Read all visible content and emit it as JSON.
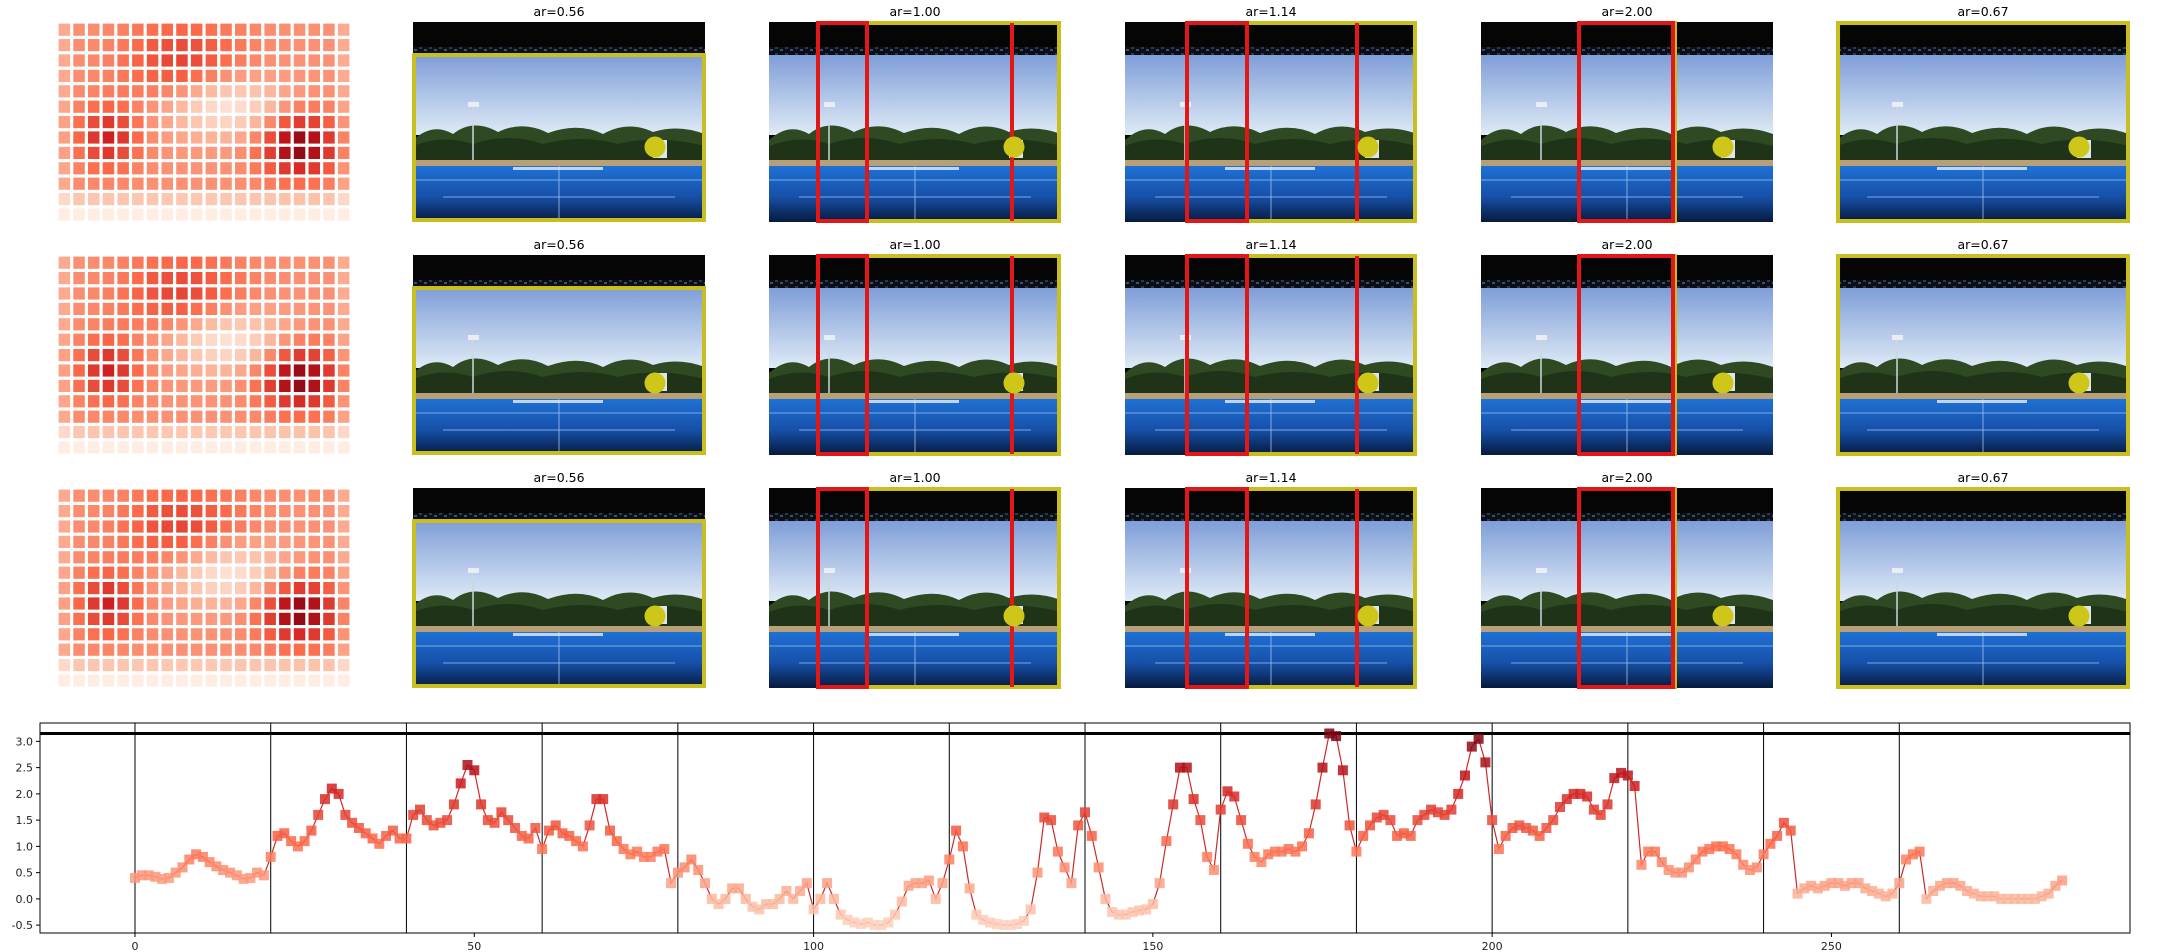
{
  "figure": {
    "rows": [
      {
        "heatmap_name": "saliency-heatmap-row1",
        "panels": [
          {
            "title": "ar=0.56",
            "red_lines": false,
            "dot": true
          },
          {
            "title": "ar=1.00",
            "red_lines": true,
            "dot": true
          },
          {
            "title": "ar=1.14",
            "red_lines": true,
            "dot": true
          },
          {
            "title": "ar=2.00",
            "red_lines": true,
            "dot": true
          },
          {
            "title": "ar=0.67",
            "red_lines": false,
            "dot": true
          }
        ]
      },
      {
        "heatmap_name": "saliency-heatmap-row2",
        "panels": [
          {
            "title": "ar=0.56",
            "red_lines": false,
            "dot": true
          },
          {
            "title": "ar=1.00",
            "red_lines": true,
            "dot": true
          },
          {
            "title": "ar=1.14",
            "red_lines": true,
            "dot": true
          },
          {
            "title": "ar=2.00",
            "red_lines": true,
            "dot": true
          },
          {
            "title": "ar=0.67",
            "red_lines": false,
            "dot": true
          }
        ]
      },
      {
        "heatmap_name": "saliency-heatmap-row3",
        "panels": [
          {
            "title": "ar=0.56",
            "red_lines": false,
            "dot": true
          },
          {
            "title": "ar=1.00",
            "red_lines": true,
            "dot": true
          },
          {
            "title": "ar=1.14",
            "red_lines": true,
            "dot": true
          },
          {
            "title": "ar=2.00",
            "red_lines": true,
            "dot": true
          },
          {
            "title": "ar=0.67",
            "red_lines": false,
            "dot": true
          }
        ]
      }
    ],
    "colors": {
      "crop_box": "#c8bf1e",
      "red_line": "#e01818",
      "dot": "#cfc61a",
      "line": "#cc2a2a"
    }
  },
  "chart_data": {
    "type": "line",
    "title": "",
    "xlabel": "",
    "ylabel": "",
    "xlim": [
      -14,
      294
    ],
    "ylim": [
      -0.65,
      3.35
    ],
    "xticks": [
      0,
      50,
      100,
      150,
      200,
      250
    ],
    "yticks": [
      -0.5,
      0.0,
      0.5,
      1.0,
      1.5,
      2.0,
      2.5,
      3.0
    ],
    "vlines": [
      0,
      20,
      40,
      60,
      80,
      100,
      120,
      140,
      160,
      180,
      200,
      220,
      240,
      260
    ],
    "hline": 3.15,
    "series": [
      {
        "values": [
          0.4,
          0.45,
          0.45,
          0.42,
          0.38,
          0.4,
          0.5,
          0.6,
          0.75,
          0.85,
          0.8,
          0.7,
          0.62,
          0.55,
          0.5,
          0.45,
          0.38,
          0.4,
          0.5,
          0.45,
          0.8,
          1.2,
          1.25,
          1.1,
          1.0,
          1.1,
          1.3,
          1.6,
          1.9,
          2.1,
          2.0,
          1.6,
          1.45,
          1.35,
          1.25,
          1.15,
          1.05,
          1.2,
          1.3,
          1.15,
          1.15,
          1.6,
          1.7,
          1.5,
          1.4,
          1.45,
          1.5,
          1.8,
          2.2,
          2.55,
          2.45,
          1.8,
          1.5,
          1.45,
          1.65,
          1.5,
          1.35,
          1.2,
          1.15,
          1.35,
          0.95,
          1.3,
          1.4,
          1.25,
          1.2,
          1.1,
          1.0,
          1.4,
          1.9,
          1.9,
          1.3,
          1.1,
          0.95,
          0.85,
          0.9,
          0.8,
          0.8,
          0.9,
          0.95,
          0.3,
          0.5,
          0.6,
          0.75,
          0.55,
          0.3,
          0.0,
          -0.1,
          0.0,
          0.2,
          0.2,
          0.0,
          -0.15,
          -0.2,
          -0.1,
          -0.1,
          0.0,
          0.15,
          0.0,
          0.15,
          0.3,
          -0.2,
          0.0,
          0.3,
          0.0,
          -0.3,
          -0.4,
          -0.45,
          -0.48,
          -0.45,
          -0.5,
          -0.5,
          -0.45,
          -0.3,
          -0.05,
          0.25,
          0.3,
          0.3,
          0.35,
          0.0,
          0.3,
          0.75,
          1.3,
          1.0,
          0.2,
          -0.3,
          -0.4,
          -0.45,
          -0.48,
          -0.5,
          -0.5,
          -0.48,
          -0.42,
          -0.2,
          0.5,
          1.55,
          1.5,
          0.9,
          0.6,
          0.3,
          1.4,
          1.65,
          1.2,
          0.6,
          0.0,
          -0.25,
          -0.3,
          -0.3,
          -0.25,
          -0.22,
          -0.2,
          -0.1,
          0.3,
          1.1,
          1.8,
          2.5,
          2.5,
          1.9,
          1.5,
          0.8,
          0.55,
          1.7,
          2.05,
          1.95,
          1.5,
          1.05,
          0.8,
          0.7,
          0.85,
          0.9,
          0.9,
          0.95,
          0.9,
          1.0,
          1.25,
          1.8,
          2.5,
          3.15,
          3.1,
          2.45,
          1.4,
          0.9,
          1.2,
          1.4,
          1.55,
          1.6,
          1.5,
          1.2,
          1.25,
          1.2,
          1.5,
          1.6,
          1.7,
          1.65,
          1.6,
          1.7,
          2.0,
          2.35,
          2.9,
          3.05,
          2.6,
          1.5,
          0.95,
          1.2,
          1.35,
          1.4,
          1.35,
          1.3,
          1.2,
          1.35,
          1.5,
          1.75,
          1.9,
          2.0,
          2.0,
          1.95,
          1.7,
          1.6,
          1.8,
          2.3,
          2.4,
          2.35,
          2.15,
          0.65,
          0.9,
          0.9,
          0.7,
          0.55,
          0.5,
          0.5,
          0.6,
          0.75,
          0.9,
          0.95,
          1.0,
          1.0,
          0.95,
          0.85,
          0.65,
          0.55,
          0.6,
          0.85,
          1.05,
          1.2,
          1.45,
          1.3,
          0.1,
          0.2,
          0.25,
          0.2,
          0.25,
          0.3,
          0.3,
          0.25,
          0.3,
          0.3,
          0.2,
          0.15,
          0.1,
          0.05,
          0.1,
          0.3,
          0.75,
          0.85,
          0.9,
          0.0,
          0.15,
          0.25,
          0.3,
          0.3,
          0.25,
          0.15,
          0.1,
          0.05,
          0.05,
          0.05,
          0.0,
          0.0,
          0.0,
          0.0,
          0.0,
          0.0,
          0.05,
          0.1,
          0.25,
          0.35
        ]
      }
    ]
  }
}
